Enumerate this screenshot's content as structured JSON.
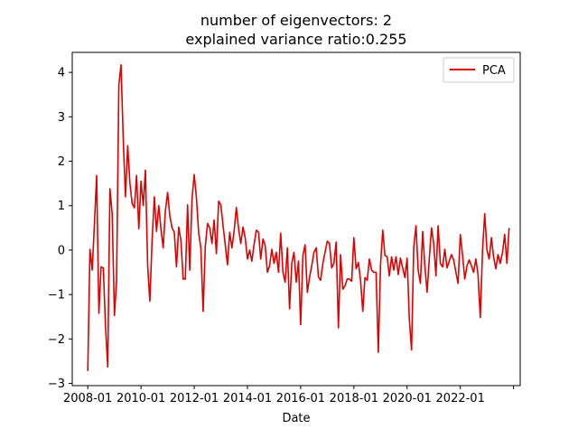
{
  "chart_data": {
    "type": "line",
    "title": "number of eigenvectors: 2",
    "subtitle": "explained variance ratio:0.255",
    "xlabel": "Date",
    "ylabel": "",
    "x_tick_labels": [
      "2008-01",
      "2010-01",
      "2012-01",
      "2014-01",
      "2016-01",
      "2018-01",
      "2020-01",
      "2022-01",
      ""
    ],
    "y_ticks": [
      -3,
      -2,
      -1,
      0,
      1,
      2,
      3,
      4
    ],
    "xlim": [
      "2007-06",
      "2024-04"
    ],
    "ylim": [
      -3.05,
      4.45
    ],
    "grid": false,
    "legend_position": "top-right",
    "series": [
      {
        "name": "PCA",
        "color": "#e00000",
        "x_start": "2008-01",
        "x_step": "1 month",
        "values": [
          -2.72,
          0.02,
          -0.45,
          0.6,
          1.68,
          -1.42,
          -0.38,
          -0.4,
          -1.71,
          -2.63,
          1.38,
          0.82,
          -1.47,
          -0.68,
          3.72,
          4.17,
          2.48,
          1.2,
          2.35,
          1.52,
          1.05,
          0.95,
          1.68,
          0.48,
          1.55,
          1.0,
          1.8,
          -0.35,
          -1.15,
          0.22,
          1.2,
          0.42,
          1.0,
          0.48,
          0.05,
          0.88,
          1.3,
          0.78,
          0.5,
          0.4,
          -0.38,
          0.52,
          0.22,
          -0.65,
          -0.65,
          1.02,
          -0.45,
          1.15,
          1.7,
          1.18,
          0.38,
          0.05,
          -1.38,
          0.08,
          0.6,
          0.5,
          0.15,
          0.68,
          -0.08,
          1.1,
          1.02,
          0.55,
          0.12,
          -0.33,
          0.4,
          0.05,
          0.42,
          0.96,
          0.48,
          0.15,
          0.52,
          0.28,
          -0.2,
          0.0,
          -0.25,
          0.12,
          0.45,
          0.4,
          -0.2,
          0.25,
          0.1,
          -0.5,
          -0.35,
          0.02,
          -0.3,
          -0.05,
          -0.5,
          0.38,
          -0.5,
          -0.72,
          0.05,
          -1.32,
          -0.3,
          -0.05,
          -0.72,
          -0.25,
          -1.68,
          -0.12,
          0.12,
          -0.95,
          -0.62,
          -0.35,
          -0.05,
          0.05,
          -0.6,
          -0.68,
          -0.3,
          -0.05,
          0.2,
          0.15,
          -0.4,
          -0.3,
          0.18,
          -1.75,
          -0.1,
          -0.88,
          -0.8,
          -0.65,
          -0.65,
          -0.7,
          0.28,
          -0.42,
          -0.28,
          -0.68,
          -1.38,
          -0.62,
          -0.68,
          -0.2,
          -0.45,
          -0.5,
          -0.5,
          -2.3,
          -0.35,
          0.45,
          -0.12,
          -0.15,
          -0.58,
          -0.15,
          -0.45,
          -0.15,
          -0.55,
          -0.18,
          -0.4,
          -0.62,
          -0.18,
          -1.55,
          -2.25,
          0.05,
          0.55,
          -0.45,
          -0.75,
          0.42,
          -0.35,
          -0.95,
          -0.2,
          0.5,
          0.15,
          -0.58,
          0.55,
          -0.3,
          -0.38,
          0.02,
          -0.4,
          -0.25,
          -0.1,
          -0.22,
          -0.5,
          -0.75,
          0.35,
          -0.12,
          -0.65,
          -0.35,
          -0.22,
          -0.35,
          -0.5,
          -0.2,
          -0.55,
          -1.52,
          0.0,
          0.82,
          0.0,
          -0.2,
          0.28,
          -0.15,
          -0.42,
          -0.1,
          -0.3,
          -0.05,
          0.35,
          -0.3,
          0.5
        ]
      }
    ]
  }
}
